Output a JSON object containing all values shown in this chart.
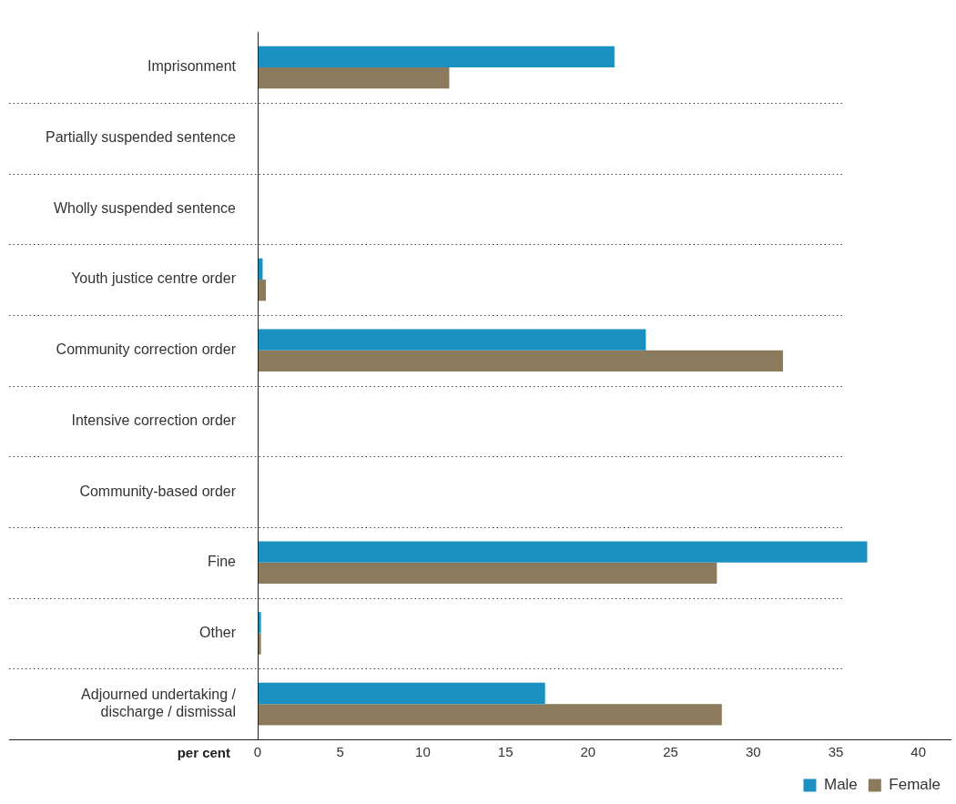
{
  "chart_data": {
    "type": "bar",
    "orientation": "horizontal",
    "xlabel": "per cent",
    "categories": [
      "Imprisonment",
      "Partially suspended sentence",
      "Wholly suspended sentence",
      "Youth justice centre order",
      "Community correction order",
      "Intensive correction order",
      "Community-based order",
      "Fine",
      "Other",
      "Adjourned undertaking / discharge / dismissal"
    ],
    "series": [
      {
        "name": "Male",
        "color": "#1a91c0",
        "values": [
          21.6,
          0,
          0,
          0.3,
          23.5,
          0,
          0,
          36.9,
          0.2,
          17.4
        ]
      },
      {
        "name": "Female",
        "color": "#8b7b5c",
        "values": [
          11.6,
          0,
          0,
          0.5,
          31.8,
          0,
          0,
          27.8,
          0.2,
          28.1
        ]
      }
    ],
    "xlim": [
      0,
      42
    ],
    "xticks": [
      0,
      5,
      10,
      15,
      20,
      25,
      30,
      35,
      40
    ],
    "grid": "y",
    "legend": "bottom right"
  }
}
